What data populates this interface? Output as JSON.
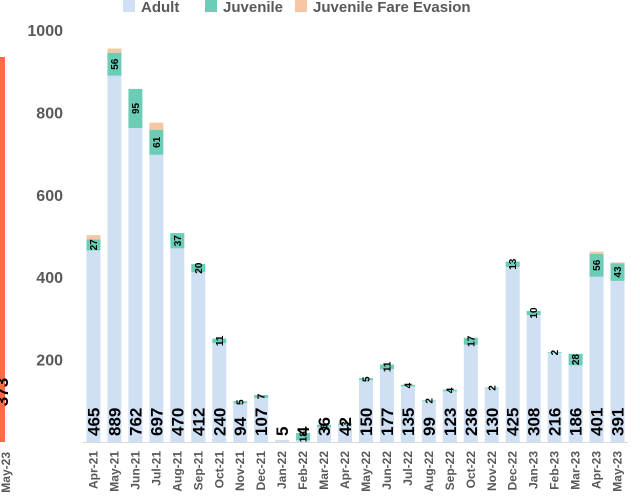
{
  "chart_data": {
    "type": "bar",
    "stacked": true,
    "categories": [
      "Apr-21",
      "May-21",
      "Jun-21",
      "Jul-21",
      "Aug-21",
      "Sep-21",
      "Oct-21",
      "Nov-21",
      "Dec-21",
      "Jan-22",
      "Feb-22",
      "Mar-22",
      "Apr-22",
      "May-22",
      "Jun-22",
      "Jul-22",
      "Aug-22",
      "Sep-22",
      "Oct-22",
      "Nov-22",
      "Dec-22",
      "Jan-23",
      "Feb-23",
      "Mar-23",
      "Apr-23",
      "May-23"
    ],
    "series": [
      {
        "name": "Adult",
        "color": "#cfe0f5",
        "values": [
          465,
          889,
          762,
          697,
          470,
          412,
          240,
          94,
          107,
          5,
          4,
          36,
          42,
          150,
          177,
          135,
          99,
          123,
          236,
          130,
          425,
          308,
          216,
          186,
          401,
          391
        ],
        "labels": [
          "465",
          "889",
          "762",
          "697",
          "470",
          "412",
          "240",
          "94",
          "107",
          "5",
          "4",
          "36",
          "42",
          "150",
          "177",
          "135",
          "99",
          "123",
          "236",
          "130",
          "425",
          "308",
          "216",
          "186",
          "401",
          "391"
        ]
      },
      {
        "name": "Juvenile",
        "color": "#6ccdb7",
        "values": [
          27,
          56,
          95,
          61,
          37,
          20,
          11,
          5,
          7,
          0,
          18,
          6,
          3,
          5,
          11,
          4,
          2,
          4,
          17,
          2,
          13,
          10,
          2,
          28,
          56,
          43
        ],
        "labels": [
          "27",
          "56",
          "95",
          "61",
          "37",
          "20",
          "11",
          "5",
          "7",
          "",
          "18",
          "6",
          "3",
          "5",
          "11",
          "4",
          "2",
          "4",
          "17",
          "2",
          "13",
          "10",
          "2",
          "28",
          "56",
          "43"
        ]
      },
      {
        "name": "Juvenile Fare Evasion",
        "color": "#f7c6a3",
        "values": [
          10,
          10,
          0,
          17,
          0,
          0,
          0,
          0,
          0,
          0,
          0,
          0,
          0,
          0,
          0,
          0,
          0,
          0,
          0,
          0,
          0,
          0,
          0,
          0,
          5,
          2
        ]
      }
    ],
    "ylim": [
      0,
      1000
    ],
    "yticks": [
      200,
      400,
      600,
      800,
      1000
    ],
    "legend_position": "top",
    "side_panel": {
      "color": "#ff6a47",
      "label": "373",
      "category": "May-23"
    }
  }
}
